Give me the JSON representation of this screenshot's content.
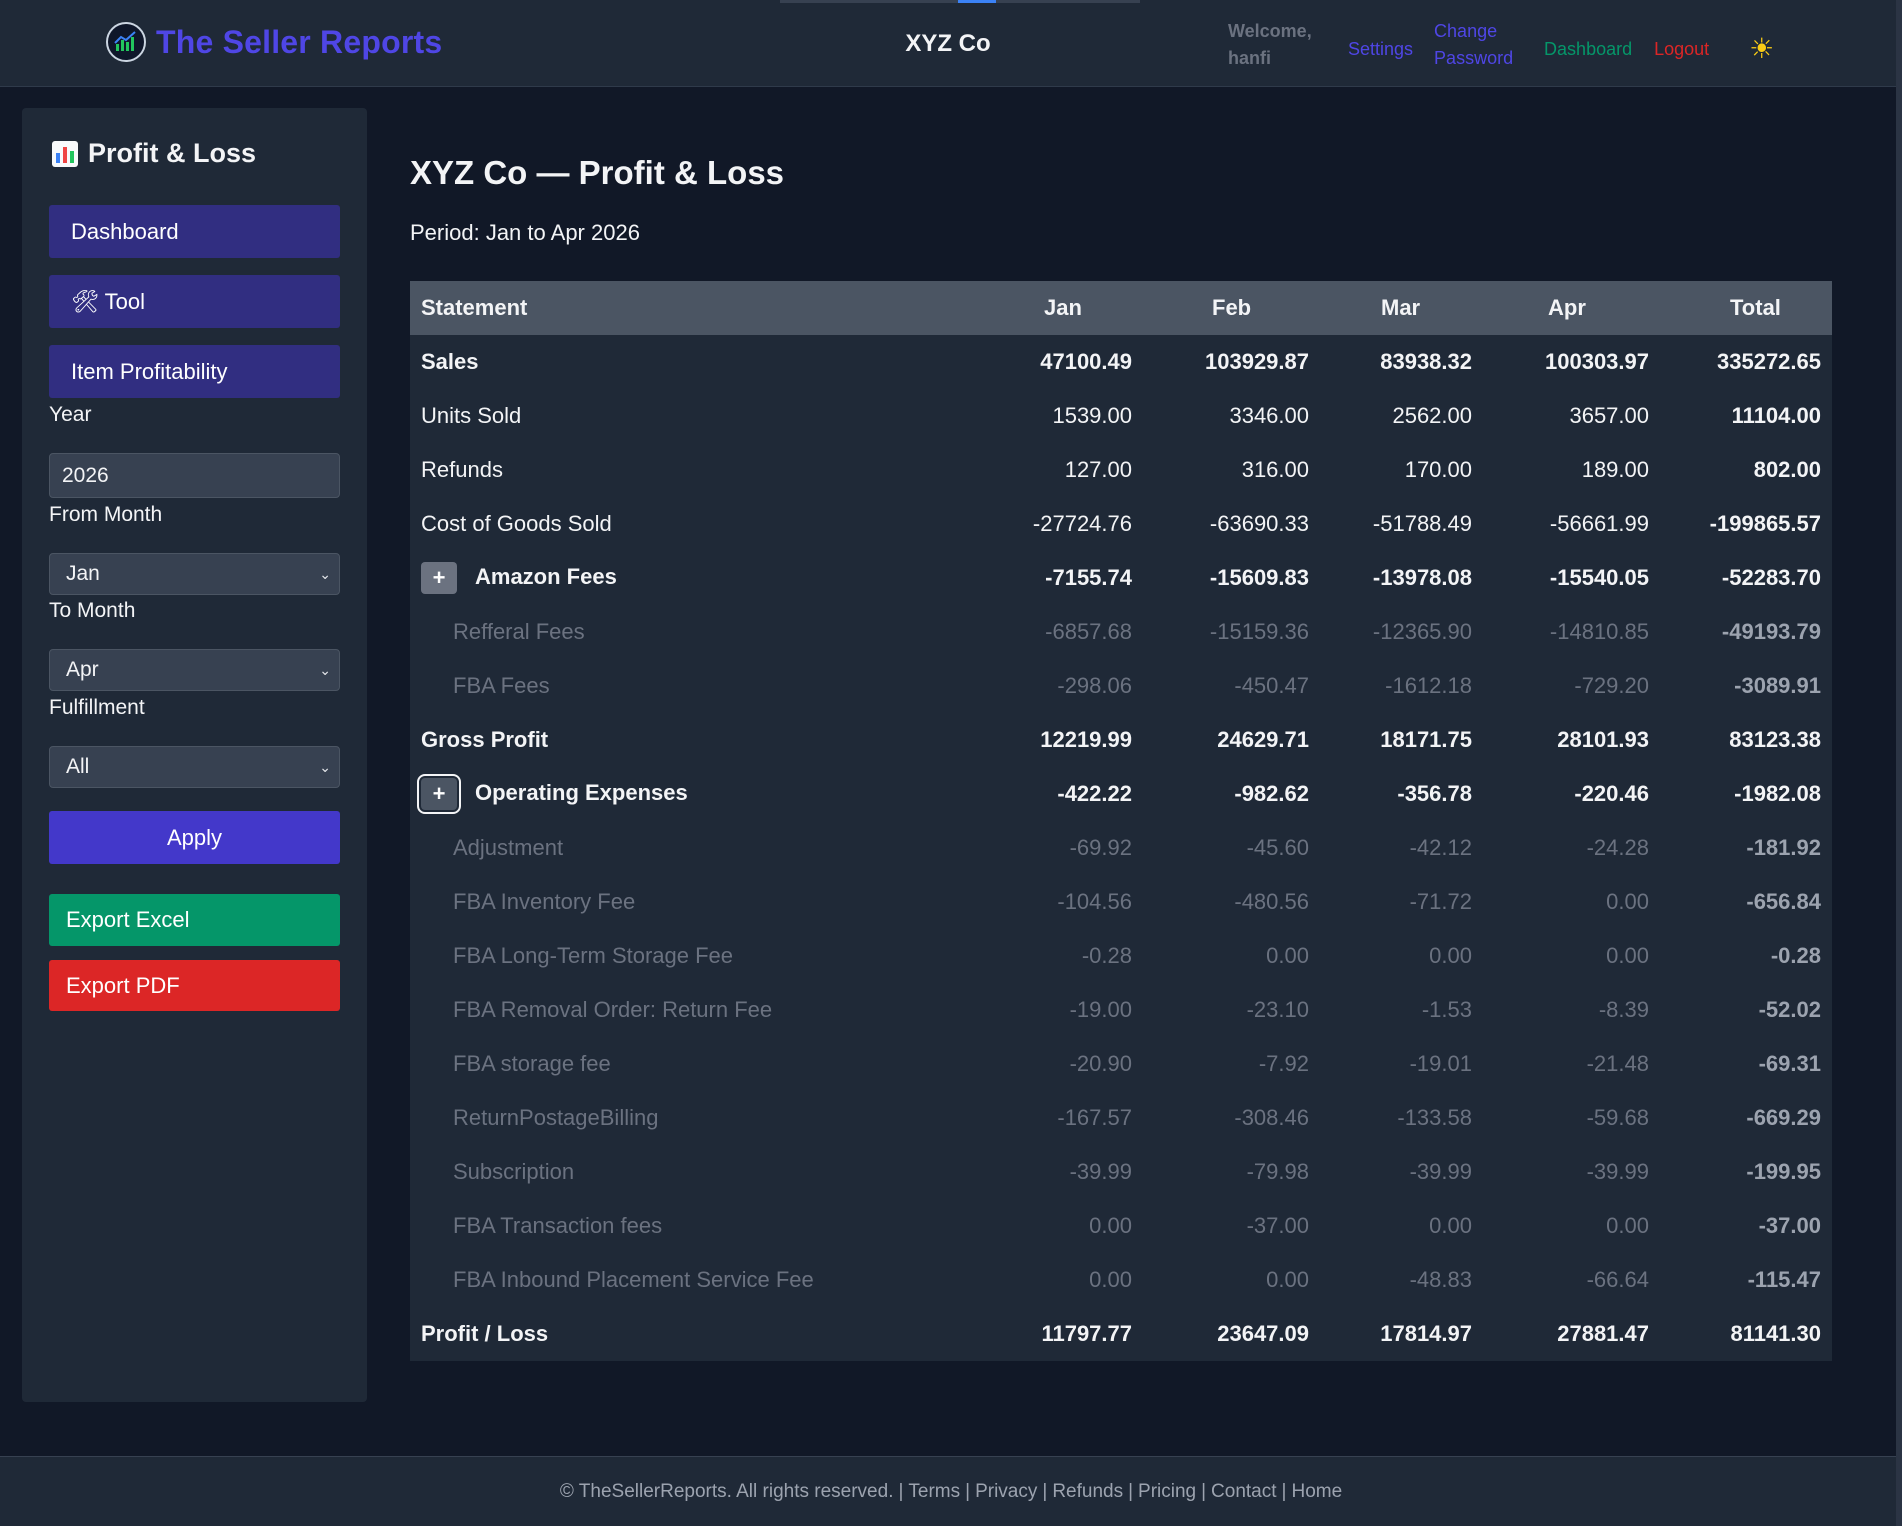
{
  "header": {
    "brand": "The Seller Reports",
    "company": "XYZ Co",
    "welcome": "Welcome, hanfi",
    "settings": "Settings",
    "change_password": "Change Password",
    "dashboard": "Dashboard",
    "logout": "Logout",
    "theme_icon": "☀"
  },
  "sidebar": {
    "title": "Profit & Loss",
    "buttons": {
      "dashboard": "Dashboard",
      "tool": "🛠 Tool",
      "item_profitability": "Item Profitability"
    },
    "year_label": "Year",
    "year_value": "2026",
    "from_label": "From Month",
    "from_value": "Jan",
    "to_label": "To Month",
    "to_value": "Apr",
    "fulfillment_label": "Fulfillment",
    "fulfillment_value": "All",
    "apply": "Apply",
    "export_excel": "Export Excel",
    "export_pdf": "Export PDF"
  },
  "main": {
    "title": "XYZ Co — Profit & Loss",
    "period": "Period: Jan to Apr 2026",
    "columns": [
      "Statement",
      "Jan",
      "Feb",
      "Mar",
      "Apr",
      "Total"
    ],
    "expand_symbol": "+",
    "rows": [
      {
        "label": "Sales",
        "jan": "47100.49",
        "feb": "103929.87",
        "mar": "83938.32",
        "apr": "100303.97",
        "total": "335272.65"
      },
      {
        "label": "Units Sold",
        "jan": "1539.00",
        "feb": "3346.00",
        "mar": "2562.00",
        "apr": "3657.00",
        "total": "11104.00"
      },
      {
        "label": "Refunds",
        "jan": "127.00",
        "feb": "316.00",
        "mar": "170.00",
        "apr": "189.00",
        "total": "802.00"
      },
      {
        "label": "Cost of Goods Sold",
        "jan": "-27724.76",
        "feb": "-63690.33",
        "mar": "-51788.49",
        "apr": "-56661.99",
        "total": "-199865.57"
      },
      {
        "label": "Amazon Fees",
        "jan": "-7155.74",
        "feb": "-15609.83",
        "mar": "-13978.08",
        "apr": "-15540.05",
        "total": "-52283.70"
      },
      {
        "label": "Refferal Fees",
        "jan": "-6857.68",
        "feb": "-15159.36",
        "mar": "-12365.90",
        "apr": "-14810.85",
        "total": "-49193.79"
      },
      {
        "label": "FBA Fees",
        "jan": "-298.06",
        "feb": "-450.47",
        "mar": "-1612.18",
        "apr": "-729.20",
        "total": "-3089.91"
      },
      {
        "label": "Gross Profit",
        "jan": "12219.99",
        "feb": "24629.71",
        "mar": "18171.75",
        "apr": "28101.93",
        "total": "83123.38"
      },
      {
        "label": "Operating Expenses",
        "jan": "-422.22",
        "feb": "-982.62",
        "mar": "-356.78",
        "apr": "-220.46",
        "total": "-1982.08"
      },
      {
        "label": "Adjustment",
        "jan": "-69.92",
        "feb": "-45.60",
        "mar": "-42.12",
        "apr": "-24.28",
        "total": "-181.92"
      },
      {
        "label": "FBA Inventory Fee",
        "jan": "-104.56",
        "feb": "-480.56",
        "mar": "-71.72",
        "apr": "0.00",
        "total": "-656.84"
      },
      {
        "label": "FBA Long-Term Storage Fee",
        "jan": "-0.28",
        "feb": "0.00",
        "mar": "0.00",
        "apr": "0.00",
        "total": "-0.28"
      },
      {
        "label": "FBA Removal Order: Return Fee",
        "jan": "-19.00",
        "feb": "-23.10",
        "mar": "-1.53",
        "apr": "-8.39",
        "total": "-52.02"
      },
      {
        "label": "FBA storage fee",
        "jan": "-20.90",
        "feb": "-7.92",
        "mar": "-19.01",
        "apr": "-21.48",
        "total": "-69.31"
      },
      {
        "label": "ReturnPostageBilling",
        "jan": "-167.57",
        "feb": "-308.46",
        "mar": "-133.58",
        "apr": "-59.68",
        "total": "-669.29"
      },
      {
        "label": "Subscription",
        "jan": "-39.99",
        "feb": "-79.98",
        "mar": "-39.99",
        "apr": "-39.99",
        "total": "-199.95"
      },
      {
        "label": "FBA Transaction fees",
        "jan": "0.00",
        "feb": "-37.00",
        "mar": "0.00",
        "apr": "0.00",
        "total": "-37.00"
      },
      {
        "label": "FBA Inbound Placement Service Fee",
        "jan": "0.00",
        "feb": "0.00",
        "mar": "-48.83",
        "apr": "-66.64",
        "total": "-115.47"
      },
      {
        "label": "Profit / Loss",
        "jan": "11797.77",
        "feb": "23647.09",
        "mar": "17814.97",
        "apr": "27881.47",
        "total": "81141.30"
      }
    ]
  },
  "footer": {
    "copyright": "© TheSellerReports. All rights reserved.",
    "links": [
      "Terms",
      "Privacy",
      "Refunds",
      "Pricing",
      "Contact",
      "Home"
    ]
  },
  "colors": {
    "background": "#111827",
    "panel": "#1f2937",
    "brand": "#4f46e5",
    "nav_button": "#312e81",
    "apply": "#4338ca",
    "excel": "#059669",
    "pdf": "#dc2626"
  }
}
